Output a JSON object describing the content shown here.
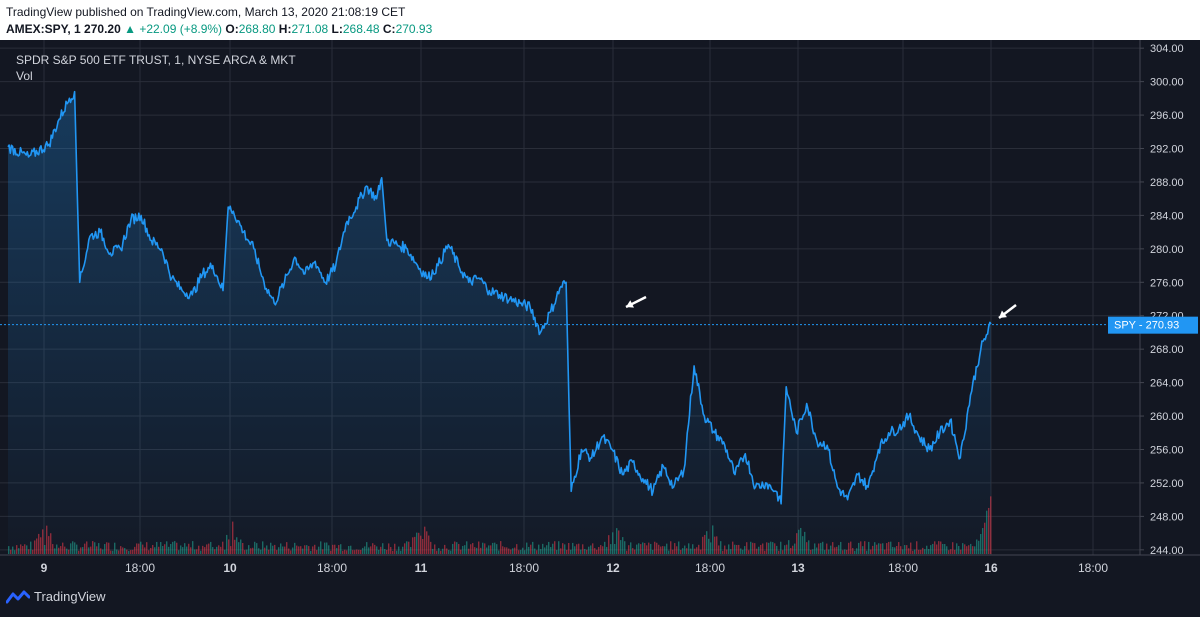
{
  "header": {
    "line1": "TradingView published on TradingView.com, March 13, 2020 21:08:19 CET",
    "symbol": "AMEX:SPY, 1",
    "last": "270.20",
    "up_arrow": "▲",
    "change": "+22.09 (+8.9%)",
    "o_label": "O:",
    "o_value": "268.80",
    "h_label": "H:",
    "h_value": "271.08",
    "l_label": "L:",
    "l_value": "268.48",
    "c_label": "C:",
    "c_value": "270.93"
  },
  "legend": {
    "title": "SPDR S&P 500 ETF TRUST, 1, NYSE ARCA & MKT",
    "vol": "Vol"
  },
  "price_tag": {
    "symbol": "SPY",
    "value": "270.93"
  },
  "footer": {
    "brand": "TradingView"
  },
  "colors": {
    "background": "#131722",
    "line": "#2196f3",
    "grid": "#2a2e39",
    "text": "#d1d4dc",
    "vol_up": "#22ab94",
    "vol_down": "#f23645",
    "arrow": "#ffffff"
  },
  "chart_data": {
    "type": "line",
    "title": "SPDR S&P 500 ETF TRUST, 1, NYSE ARCA & MKT",
    "y_ticks": [
      244,
      248,
      252,
      256,
      260,
      264,
      268,
      272,
      276,
      280,
      284,
      288,
      292,
      296,
      300,
      304
    ],
    "ylim": [
      243.5,
      304.5
    ],
    "x_tick_labels": [
      "9",
      "18:00",
      "10",
      "18:00",
      "11",
      "18:00",
      "12",
      "18:00",
      "13",
      "18:00",
      "16",
      "18:00"
    ],
    "current_price": 270.93,
    "series": [
      {
        "values": [
          [
            0,
            292.2
          ],
          [
            2,
            291.0
          ],
          [
            4,
            292.5
          ],
          [
            5,
            295.5
          ],
          [
            6,
            298.0
          ],
          [
            6.5,
            298.8
          ],
          [
            7,
            276.0
          ],
          [
            8,
            281.5
          ],
          [
            9,
            282.0
          ],
          [
            10,
            279.5
          ],
          [
            11,
            280.0
          ],
          [
            12,
            283.5
          ],
          [
            13,
            284.0
          ],
          [
            14,
            281.0
          ],
          [
            15,
            280.0
          ],
          [
            16,
            276.5
          ],
          [
            17,
            275.0
          ],
          [
            18,
            274.5
          ],
          [
            19,
            277.0
          ],
          [
            20,
            278.0
          ],
          [
            21,
            275.0
          ],
          [
            21.5,
            285.0
          ],
          [
            22,
            284.5
          ],
          [
            23,
            282.0
          ],
          [
            24,
            280.0
          ],
          [
            25,
            276.0
          ],
          [
            26,
            273.5
          ],
          [
            27,
            276.0
          ],
          [
            28,
            279.0
          ],
          [
            29,
            277.0
          ],
          [
            30,
            278.5
          ],
          [
            31,
            276.0
          ],
          [
            32,
            278.0
          ],
          [
            33,
            283.0
          ],
          [
            34,
            285.0
          ],
          [
            35,
            287.5
          ],
          [
            36,
            286.0
          ],
          [
            36.5,
            288.5
          ],
          [
            37,
            281.0
          ],
          [
            38,
            280.5
          ],
          [
            39,
            280.0
          ],
          [
            40,
            278.0
          ],
          [
            41,
            276.5
          ],
          [
            42,
            278.0
          ],
          [
            43,
            280.5
          ],
          [
            44,
            278.0
          ],
          [
            45,
            276.0
          ],
          [
            46,
            276.5
          ],
          [
            47,
            275.0
          ],
          [
            48,
            274.5
          ],
          [
            49,
            274.0
          ],
          [
            50,
            273.5
          ],
          [
            51,
            273.0
          ],
          [
            52,
            270.0
          ],
          [
            53,
            272.5
          ],
          [
            54,
            275.5
          ],
          [
            54.5,
            276.0
          ],
          [
            55,
            251.0
          ],
          [
            56,
            256.0
          ],
          [
            57,
            255.0
          ],
          [
            58,
            257.5
          ],
          [
            59,
            256.0
          ],
          [
            60,
            253.0
          ],
          [
            61,
            254.5
          ],
          [
            62,
            252.5
          ],
          [
            63,
            251.0
          ],
          [
            64,
            254.0
          ],
          [
            65,
            251.5
          ],
          [
            66,
            253.5
          ],
          [
            67,
            266.0
          ],
          [
            68,
            260.0
          ],
          [
            69,
            258.0
          ],
          [
            70,
            256.5
          ],
          [
            71,
            253.0
          ],
          [
            72,
            255.5
          ],
          [
            73,
            251.5
          ],
          [
            74,
            252.0
          ],
          [
            75,
            251.0
          ],
          [
            75.5,
            249.5
          ],
          [
            76,
            263.5
          ],
          [
            77,
            258.0
          ],
          [
            78,
            261.5
          ],
          [
            79,
            257.0
          ],
          [
            80,
            256.5
          ],
          [
            81,
            251.5
          ],
          [
            82,
            250.0
          ],
          [
            83,
            253.0
          ],
          [
            84,
            251.5
          ],
          [
            85,
            256.0
          ],
          [
            86,
            258.0
          ],
          [
            87,
            258.5
          ],
          [
            88,
            260.0
          ],
          [
            89,
            257.5
          ],
          [
            90,
            256.0
          ],
          [
            91,
            258.0
          ],
          [
            92,
            259.5
          ],
          [
            93,
            255.0
          ],
          [
            94,
            262.5
          ],
          [
            95,
            268.0
          ],
          [
            96,
            271.0
          ]
        ]
      }
    ]
  }
}
